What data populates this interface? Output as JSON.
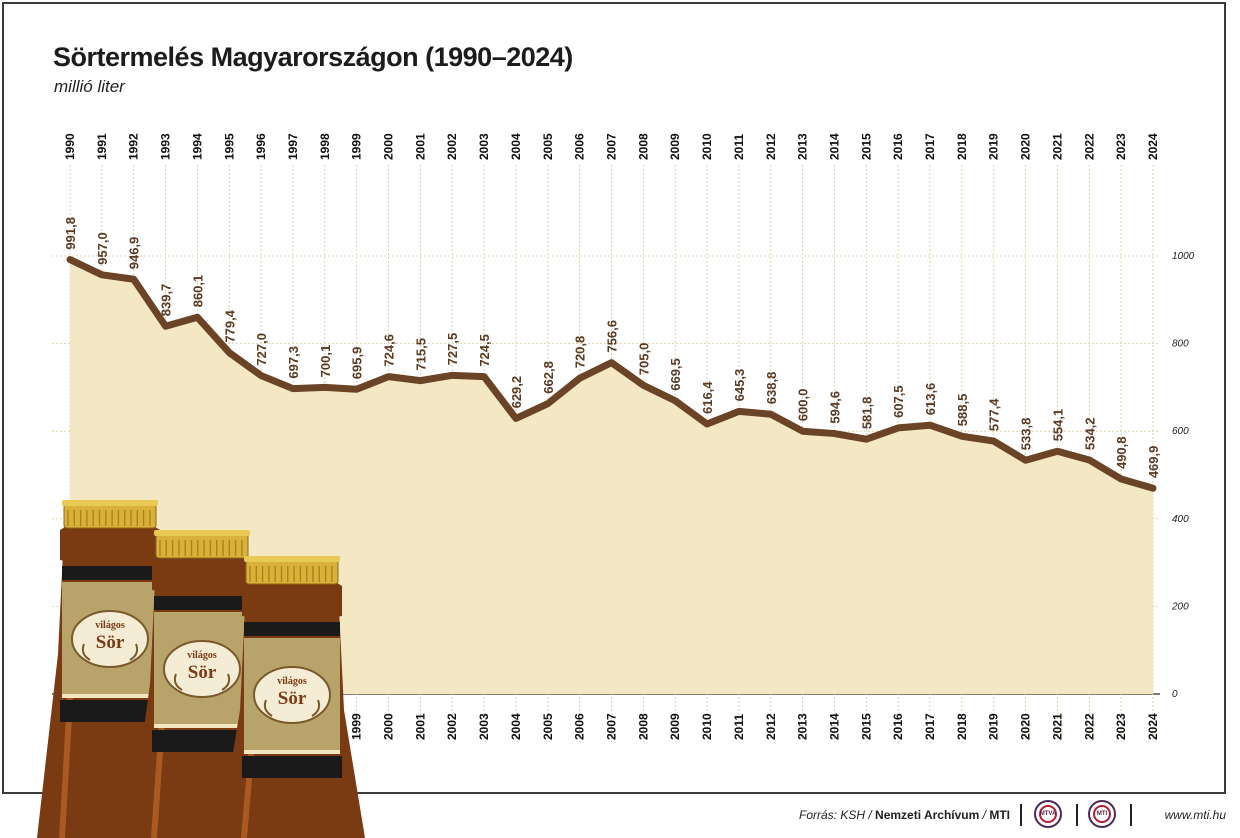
{
  "header": {
    "title": "Sörtermelés Magyarországon (1990–2024)",
    "subtitle": "millió liter"
  },
  "colors": {
    "line": "#6b4326",
    "area": "#f3e7c4",
    "grid": "#d9c99a",
    "label": "#5a3a22"
  },
  "chart_data": {
    "type": "area",
    "title": "Sörtermelés Magyarországon (1990–2024)",
    "ylabel": "millió liter",
    "ylim": [
      0,
      1000
    ],
    "yticks": [
      "0",
      "200",
      "400",
      "600",
      "800",
      "1000"
    ],
    "grid": true,
    "categories": [
      "1990",
      "1991",
      "1992",
      "1993",
      "1994",
      "1995",
      "1996",
      "1997",
      "1998",
      "1999",
      "2000",
      "2001",
      "2002",
      "2003",
      "2004",
      "2005",
      "2006",
      "2007",
      "2008",
      "2009",
      "2010",
      "2011",
      "2012",
      "2013",
      "2014",
      "2015",
      "2016",
      "2017",
      "2018",
      "2019",
      "2020",
      "2021",
      "2022",
      "2023",
      "2024"
    ],
    "values": [
      991.8,
      957.0,
      946.9,
      839.7,
      860.1,
      779.4,
      727.0,
      697.3,
      700.1,
      695.9,
      724.6,
      715.5,
      727.5,
      724.5,
      629.2,
      662.8,
      720.8,
      756.6,
      705.0,
      669.5,
      616.4,
      645.3,
      638.8,
      600.0,
      594.6,
      581.8,
      607.5,
      613.6,
      588.5,
      577.4,
      533.8,
      554.1,
      534.2,
      490.8,
      469.9
    ],
    "value_labels": [
      "991,8",
      "957,0",
      "946,9",
      "839,7",
      "860,1",
      "779,4",
      "727,0",
      "697,3",
      "700,1",
      "695,9",
      "724,6",
      "715,5",
      "727,5",
      "724,5",
      "629,2",
      "662,8",
      "720,8",
      "756,6",
      "705,0",
      "669,5",
      "616,4",
      "645,3",
      "638,8",
      "600,0",
      "594,6",
      "581,8",
      "607,5",
      "613,6",
      "588,5",
      "577,4",
      "533,8",
      "554,1",
      "534,2",
      "490,8",
      "469,9"
    ]
  },
  "illustration": {
    "bottle_label_top": "világos",
    "bottle_label_main": "Sör"
  },
  "footer": {
    "source_prefix": "Forrás: KSH /",
    "source_archive": "Nemzeti Archívum",
    "source_sep": "/",
    "source_mti": "MTI",
    "logo1": "MTVA",
    "logo2": "MTI",
    "url": "www.mti.hu"
  }
}
